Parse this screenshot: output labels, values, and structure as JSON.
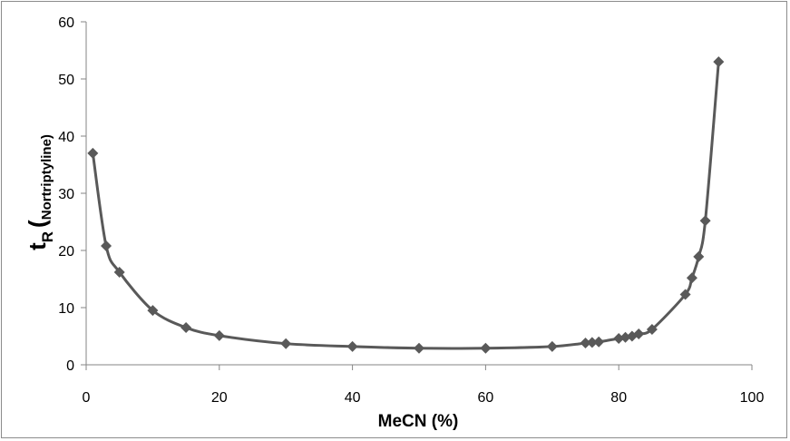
{
  "chart_data": {
    "type": "line",
    "title": "",
    "xlabel": "MeCN (%)",
    "ylabel_main": "t",
    "ylabel_sub": "R",
    "ylabel_paren": "(",
    "ylabel_compound": "Nortriptyline)",
    "xlim": [
      0,
      100
    ],
    "ylim": [
      0,
      60
    ],
    "x_ticks": [
      0,
      20,
      40,
      60,
      80,
      100
    ],
    "y_ticks": [
      0,
      10,
      20,
      30,
      40,
      50,
      60
    ],
    "grid": false,
    "legend": "none",
    "marker": "diamond",
    "line_style": "smooth",
    "color": "#595959",
    "series": [
      {
        "x": [
          1,
          3,
          5,
          10,
          15,
          20,
          30,
          40,
          50,
          60,
          70,
          75,
          76,
          77,
          80,
          81,
          82,
          83,
          85,
          90,
          91,
          92,
          93,
          95
        ],
        "y": [
          37,
          20.8,
          16.2,
          9.5,
          6.5,
          5.1,
          3.7,
          3.2,
          2.9,
          2.9,
          3.2,
          3.8,
          3.9,
          4.0,
          4.6,
          4.8,
          5.0,
          5.4,
          6.2,
          12.3,
          15.2,
          18.9,
          25.2,
          53
        ]
      }
    ]
  }
}
